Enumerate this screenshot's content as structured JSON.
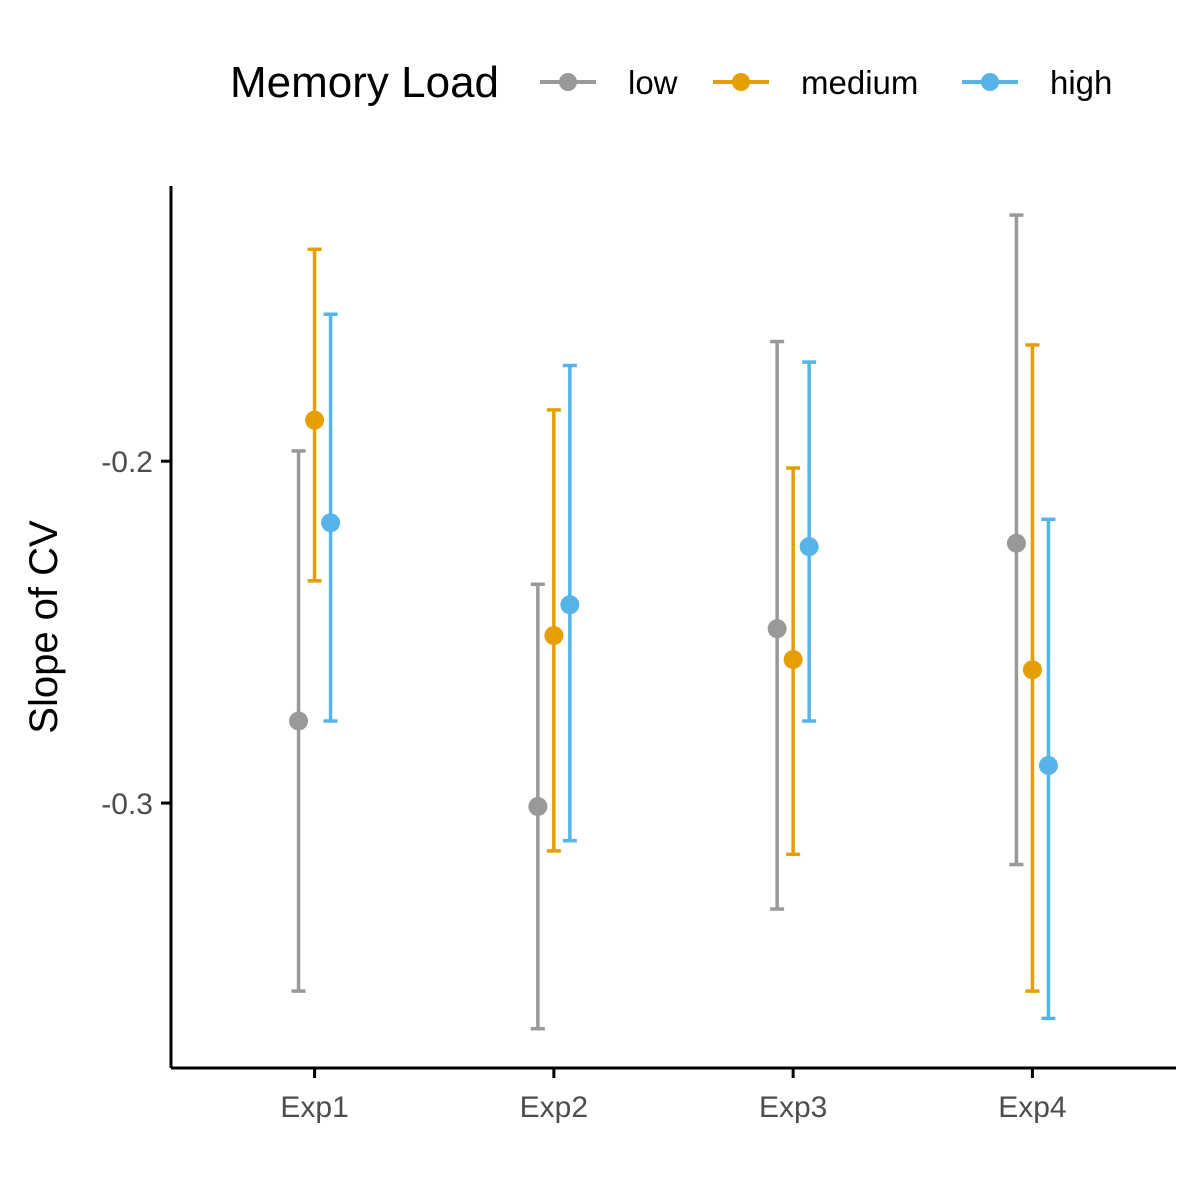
{
  "chart_data": {
    "type": "scatter",
    "subtype": "dot-with-error-bars",
    "title": "",
    "xlabel": "",
    "ylabel": "Slope of CV",
    "categories": [
      "Exp1",
      "Exp2",
      "Exp3",
      "Exp4"
    ],
    "ylim": [
      -0.3775,
      -0.1195
    ],
    "yticks": [
      -0.3,
      -0.2
    ],
    "ytick_labels": [
      "-0.3",
      "-0.2"
    ],
    "grid": false,
    "legend": {
      "title": "Memory Load",
      "position": "top",
      "entries": [
        "low",
        "medium",
        "high"
      ]
    },
    "series": [
      {
        "name": "low",
        "color": "#999999",
        "values": [
          -0.276,
          -0.301,
          -0.249,
          -0.224
        ],
        "lower": [
          -0.355,
          -0.366,
          -0.331,
          -0.318
        ],
        "upper": [
          -0.197,
          -0.236,
          -0.165,
          -0.128
        ]
      },
      {
        "name": "medium",
        "color": "#E69F00",
        "values": [
          -0.188,
          -0.251,
          -0.258,
          -0.261
        ],
        "lower": [
          -0.235,
          -0.314,
          -0.315,
          -0.355
        ],
        "upper": [
          -0.138,
          -0.185,
          -0.202,
          -0.166
        ]
      },
      {
        "name": "high",
        "color": "#56B4E9",
        "values": [
          -0.218,
          -0.242,
          -0.225,
          -0.289
        ],
        "lower": [
          -0.276,
          -0.311,
          -0.276,
          -0.363
        ],
        "upper": [
          -0.157,
          -0.172,
          -0.171,
          -0.217
        ]
      }
    ]
  }
}
